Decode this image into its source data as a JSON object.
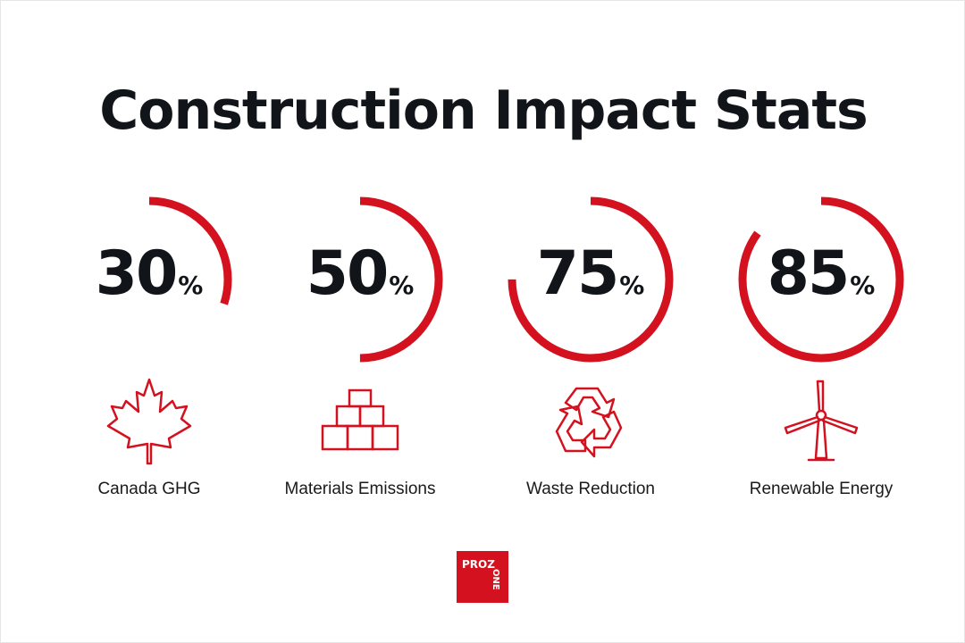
{
  "title": "Construction Impact Stats",
  "colors": {
    "accent": "#d4111e",
    "text": "#111418"
  },
  "stats": [
    {
      "value": "30",
      "unit": "%",
      "percent": 30,
      "label": "Canada GHG",
      "icon": "maple-leaf-icon"
    },
    {
      "value": "50",
      "unit": "%",
      "percent": 50,
      "label": "Materials Emissions",
      "icon": "bricks-icon"
    },
    {
      "value": "75",
      "unit": "%",
      "percent": 75,
      "label": "Waste Reduction",
      "icon": "recycle-icon"
    },
    {
      "value": "85",
      "unit": "%",
      "percent": 85,
      "label": "Renewable Energy",
      "icon": "wind-turbine-icon"
    }
  ],
  "logo": {
    "line1": "PROZ",
    "line2": "ONE"
  }
}
